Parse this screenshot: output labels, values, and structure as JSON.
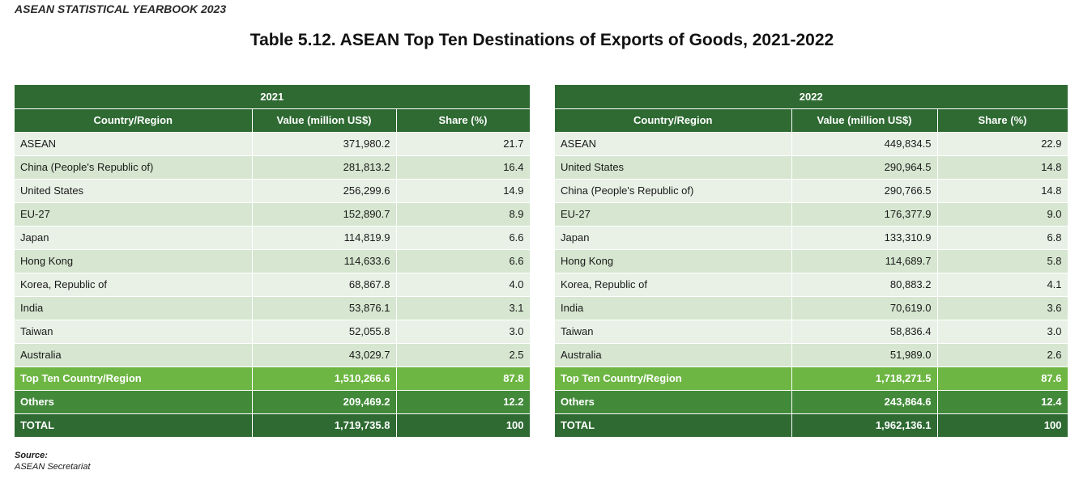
{
  "running_header": "ASEAN STATISTICAL YEARBOOK 2023",
  "title": "Table 5.12. ASEAN Top Ten Destinations of Exports of Goods, 2021-2022",
  "columns": {
    "country": "Country/Region",
    "value": "Value (million US$)",
    "share": "Share (%)"
  },
  "tables": [
    {
      "year": "2021",
      "rows": [
        {
          "country": "ASEAN",
          "value": "371,980.2",
          "share": "21.7"
        },
        {
          "country": "China (People's Republic of)",
          "value": "281,813.2",
          "share": "16.4"
        },
        {
          "country": "United States",
          "value": "256,299.6",
          "share": "14.9"
        },
        {
          "country": "EU-27",
          "value": "152,890.7",
          "share": "8.9"
        },
        {
          "country": "Japan",
          "value": "114,819.9",
          "share": "6.6"
        },
        {
          "country": "Hong Kong",
          "value": "114,633.6",
          "share": "6.6"
        },
        {
          "country": "Korea, Republic of",
          "value": "68,867.8",
          "share": "4.0"
        },
        {
          "country": "India",
          "value": "53,876.1",
          "share": "3.1"
        },
        {
          "country": "Taiwan",
          "value": "52,055.8",
          "share": "3.0"
        },
        {
          "country": "Australia",
          "value": "43,029.7",
          "share": "2.5"
        }
      ],
      "top_ten": {
        "label": "Top Ten Country/Region",
        "value": "1,510,266.6",
        "share": "87.8"
      },
      "others": {
        "label": "Others",
        "value": "209,469.2",
        "share": "12.2"
      },
      "total": {
        "label": "TOTAL",
        "value": "1,719,735.8",
        "share": "100"
      }
    },
    {
      "year": "2022",
      "rows": [
        {
          "country": "ASEAN",
          "value": "449,834.5",
          "share": "22.9"
        },
        {
          "country": "United States",
          "value": "290,964.5",
          "share": "14.8"
        },
        {
          "country": "China (People's Republic of)",
          "value": "290,766.5",
          "share": "14.8"
        },
        {
          "country": "EU-27",
          "value": "176,377.9",
          "share": "9.0"
        },
        {
          "country": "Japan",
          "value": "133,310.9",
          "share": "6.8"
        },
        {
          "country": "Hong Kong",
          "value": "114,689.7",
          "share": "5.8"
        },
        {
          "country": "Korea, Republic of",
          "value": "80,883.2",
          "share": "4.1"
        },
        {
          "country": "India",
          "value": "70,619.0",
          "share": "3.6"
        },
        {
          "country": "Taiwan",
          "value": "58,836.4",
          "share": "3.0"
        },
        {
          "country": "Australia",
          "value": "51,989.0",
          "share": "2.6"
        }
      ],
      "top_ten": {
        "label": "Top Ten Country/Region",
        "value": "1,718,271.5",
        "share": "87.6"
      },
      "others": {
        "label": "Others",
        "value": "243,864.6",
        "share": "12.4"
      },
      "total": {
        "label": "TOTAL",
        "value": "1,962,136.1",
        "share": "100"
      }
    }
  ],
  "source_label": "Source:",
  "source": "ASEAN Secretariat",
  "colors": {
    "header_dark_green": "#2e6a32",
    "top_ten_bright_green": "#6db643",
    "others_mid_green": "#428a3a",
    "row_light": "#e9f1e6",
    "row_alt": "#d6e6d0"
  }
}
